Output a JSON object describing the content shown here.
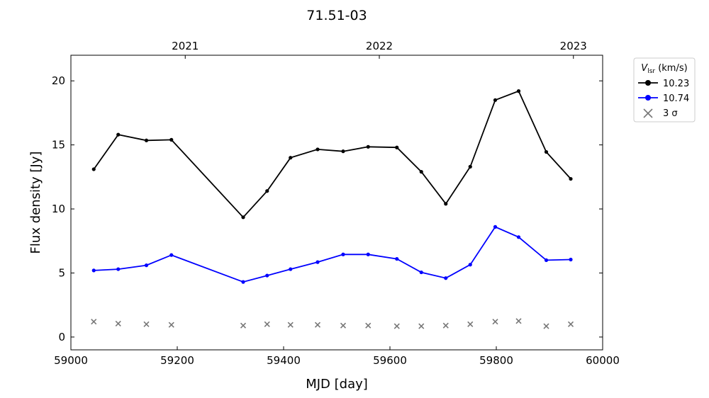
{
  "chart_data": {
    "type": "line",
    "title": "71.51-03",
    "xlabel": "MJD [day]",
    "ylabel": "Flux density [Jy]",
    "xlim": [
      59000,
      60000
    ],
    "ylim": [
      -1,
      22
    ],
    "x_ticks": [
      59000,
      59200,
      59400,
      59600,
      59800,
      60000
    ],
    "y_ticks": [
      0,
      5,
      10,
      15,
      20
    ],
    "top_axis": {
      "ticks": [
        {
          "label": "2021",
          "mjd": 59215
        },
        {
          "label": "2022",
          "mjd": 59580
        },
        {
          "label": "2023",
          "mjd": 59945
        }
      ]
    },
    "legend": {
      "title_main": "V",
      "title_sub": "lsr",
      "title_unit": " (km/s)",
      "position": "outside-upper-right",
      "entries": [
        "10.23",
        "10.74",
        "3 σ"
      ]
    },
    "series": [
      {
        "name": "10.23",
        "color": "#000000",
        "marker": "circle",
        "x": [
          59043,
          59089,
          59142,
          59189,
          59324,
          59369,
          59413,
          59464,
          59512,
          59559,
          59613,
          59659,
          59705,
          59751,
          59798,
          59842,
          59894,
          59940
        ],
        "y": [
          13.1,
          15.8,
          15.35,
          15.4,
          9.35,
          11.4,
          14.0,
          14.65,
          14.5,
          14.85,
          14.8,
          12.9,
          10.4,
          13.3,
          18.5,
          19.2,
          14.45,
          12.35
        ]
      },
      {
        "name": "10.74",
        "color": "#0000ff",
        "marker": "circle",
        "x": [
          59043,
          59089,
          59142,
          59189,
          59324,
          59369,
          59413,
          59464,
          59512,
          59559,
          59613,
          59659,
          59705,
          59751,
          59798,
          59842,
          59894,
          59940
        ],
        "y": [
          5.2,
          5.3,
          5.6,
          6.4,
          4.3,
          4.8,
          5.3,
          5.85,
          6.45,
          6.45,
          6.1,
          5.05,
          4.6,
          5.65,
          8.6,
          7.8,
          6.0,
          6.05
        ]
      },
      {
        "name": "3 σ",
        "color": "#777777",
        "marker": "x",
        "x": [
          59043,
          59089,
          59142,
          59189,
          59324,
          59369,
          59413,
          59464,
          59512,
          59559,
          59613,
          59659,
          59705,
          59751,
          59798,
          59842,
          59894,
          59940
        ],
        "y": [
          1.2,
          1.05,
          1.0,
          0.95,
          0.9,
          1.0,
          0.95,
          0.95,
          0.9,
          0.9,
          0.85,
          0.85,
          0.9,
          1.0,
          1.2,
          1.25,
          0.85,
          1.0
        ]
      }
    ]
  }
}
